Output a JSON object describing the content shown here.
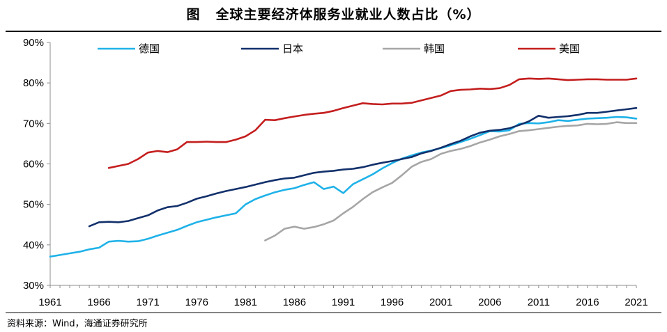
{
  "header": {
    "figure_label": "图",
    "title": "全球主要经济体服务业就业人数占比（%）"
  },
  "footer": {
    "source": "资料来源：Wind，海通证券研究所"
  },
  "chart_data": {
    "type": "line",
    "title": "全球主要经济体服务业就业人数占比（%）",
    "xlabel": "",
    "ylabel": "",
    "xlim": [
      1961,
      2021
    ],
    "ylim": [
      30,
      90
    ],
    "x_ticks": [
      1961,
      1966,
      1971,
      1976,
      1981,
      1986,
      1991,
      1996,
      2001,
      2006,
      2011,
      2016,
      2021
    ],
    "y_ticks": [
      30,
      40,
      50,
      60,
      70,
      80,
      90
    ],
    "y_tick_labels": [
      "30%",
      "40%",
      "50%",
      "60%",
      "70%",
      "80%",
      "90%"
    ],
    "legend_position": "top",
    "series": [
      {
        "name": "德国",
        "color": "#1fb2e8",
        "points": [
          [
            1961,
            37.1
          ],
          [
            1962,
            37.5
          ],
          [
            1963,
            37.9
          ],
          [
            1964,
            38.3
          ],
          [
            1965,
            38.9
          ],
          [
            1966,
            39.3
          ],
          [
            1967,
            40.8
          ],
          [
            1968,
            41.0
          ],
          [
            1969,
            40.8
          ],
          [
            1970,
            40.9
          ],
          [
            1971,
            41.5
          ],
          [
            1972,
            42.3
          ],
          [
            1973,
            43.0
          ],
          [
            1974,
            43.7
          ],
          [
            1975,
            44.7
          ],
          [
            1976,
            45.6
          ],
          [
            1977,
            46.2
          ],
          [
            1978,
            46.8
          ],
          [
            1979,
            47.3
          ],
          [
            1980,
            47.8
          ],
          [
            1981,
            50.0
          ],
          [
            1982,
            51.3
          ],
          [
            1983,
            52.2
          ],
          [
            1984,
            53.0
          ],
          [
            1985,
            53.6
          ],
          [
            1986,
            54.0
          ],
          [
            1987,
            54.8
          ],
          [
            1988,
            55.5
          ],
          [
            1989,
            53.8
          ],
          [
            1990,
            54.4
          ],
          [
            1991,
            52.8
          ],
          [
            1992,
            55.0
          ],
          [
            1993,
            56.2
          ],
          [
            1994,
            57.4
          ],
          [
            1995,
            58.9
          ],
          [
            1996,
            60.2
          ],
          [
            1997,
            61.3
          ],
          [
            1998,
            62.1
          ],
          [
            1999,
            62.8
          ],
          [
            2000,
            63.3
          ],
          [
            2001,
            63.9
          ],
          [
            2002,
            64.6
          ],
          [
            2003,
            65.4
          ],
          [
            2004,
            66.2
          ],
          [
            2005,
            67.1
          ],
          [
            2006,
            68.1
          ],
          [
            2007,
            68.0
          ],
          [
            2008,
            68.3
          ],
          [
            2009,
            69.9
          ],
          [
            2010,
            70.1
          ],
          [
            2011,
            70.0
          ],
          [
            2012,
            70.3
          ],
          [
            2013,
            70.8
          ],
          [
            2014,
            70.6
          ],
          [
            2015,
            70.9
          ],
          [
            2016,
            71.2
          ],
          [
            2017,
            71.3
          ],
          [
            2018,
            71.4
          ],
          [
            2019,
            71.6
          ],
          [
            2020,
            71.5
          ],
          [
            2021,
            71.2
          ]
        ]
      },
      {
        "name": "日本",
        "color": "#12306b",
        "points": [
          [
            1965,
            44.6
          ],
          [
            1966,
            45.6
          ],
          [
            1967,
            45.7
          ],
          [
            1968,
            45.6
          ],
          [
            1969,
            45.9
          ],
          [
            1970,
            46.6
          ],
          [
            1971,
            47.3
          ],
          [
            1972,
            48.5
          ],
          [
            1973,
            49.3
          ],
          [
            1974,
            49.6
          ],
          [
            1975,
            50.4
          ],
          [
            1976,
            51.4
          ],
          [
            1977,
            52.0
          ],
          [
            1978,
            52.7
          ],
          [
            1979,
            53.3
          ],
          [
            1980,
            53.8
          ],
          [
            1981,
            54.3
          ],
          [
            1982,
            54.9
          ],
          [
            1983,
            55.5
          ],
          [
            1984,
            56.0
          ],
          [
            1985,
            56.4
          ],
          [
            1986,
            56.6
          ],
          [
            1987,
            57.2
          ],
          [
            1988,
            57.8
          ],
          [
            1989,
            58.1
          ],
          [
            1990,
            58.3
          ],
          [
            1991,
            58.6
          ],
          [
            1992,
            58.8
          ],
          [
            1993,
            59.2
          ],
          [
            1994,
            59.8
          ],
          [
            1995,
            60.3
          ],
          [
            1996,
            60.7
          ],
          [
            1997,
            61.2
          ],
          [
            1998,
            61.7
          ],
          [
            1999,
            62.6
          ],
          [
            2000,
            63.2
          ],
          [
            2001,
            64.0
          ],
          [
            2002,
            64.9
          ],
          [
            2003,
            65.7
          ],
          [
            2004,
            66.8
          ],
          [
            2005,
            67.7
          ],
          [
            2006,
            68.2
          ],
          [
            2007,
            68.4
          ],
          [
            2008,
            68.8
          ],
          [
            2009,
            69.6
          ],
          [
            2010,
            70.5
          ],
          [
            2011,
            71.9
          ],
          [
            2012,
            71.4
          ],
          [
            2013,
            71.6
          ],
          [
            2014,
            71.8
          ],
          [
            2015,
            72.1
          ],
          [
            2016,
            72.6
          ],
          [
            2017,
            72.6
          ],
          [
            2018,
            72.9
          ],
          [
            2019,
            73.2
          ],
          [
            2020,
            73.5
          ],
          [
            2021,
            73.8
          ]
        ]
      },
      {
        "name": "韩国",
        "color": "#a6a6a6",
        "points": [
          [
            1983,
            41.1
          ],
          [
            1984,
            42.3
          ],
          [
            1985,
            44.0
          ],
          [
            1986,
            44.5
          ],
          [
            1987,
            44.0
          ],
          [
            1988,
            44.4
          ],
          [
            1989,
            45.1
          ],
          [
            1990,
            46.0
          ],
          [
            1991,
            47.8
          ],
          [
            1992,
            49.4
          ],
          [
            1993,
            51.3
          ],
          [
            1994,
            53.0
          ],
          [
            1995,
            54.2
          ],
          [
            1996,
            55.3
          ],
          [
            1997,
            57.2
          ],
          [
            1998,
            59.3
          ],
          [
            1999,
            60.5
          ],
          [
            2000,
            61.2
          ],
          [
            2001,
            62.5
          ],
          [
            2002,
            63.2
          ],
          [
            2003,
            63.7
          ],
          [
            2004,
            64.4
          ],
          [
            2005,
            65.3
          ],
          [
            2006,
            66.0
          ],
          [
            2007,
            66.8
          ],
          [
            2008,
            67.4
          ],
          [
            2009,
            68.1
          ],
          [
            2010,
            68.3
          ],
          [
            2011,
            68.6
          ],
          [
            2012,
            68.9
          ],
          [
            2013,
            69.2
          ],
          [
            2014,
            69.4
          ],
          [
            2015,
            69.5
          ],
          [
            2016,
            69.9
          ],
          [
            2017,
            69.8
          ],
          [
            2018,
            69.9
          ],
          [
            2019,
            70.3
          ],
          [
            2020,
            70.1
          ],
          [
            2021,
            70.1
          ]
        ]
      },
      {
        "name": "美国",
        "color": "#c41e1e",
        "points": [
          [
            1967,
            59.0
          ],
          [
            1968,
            59.5
          ],
          [
            1969,
            60.0
          ],
          [
            1970,
            61.2
          ],
          [
            1971,
            62.8
          ],
          [
            1972,
            63.2
          ],
          [
            1973,
            62.9
          ],
          [
            1974,
            63.6
          ],
          [
            1975,
            65.4
          ],
          [
            1976,
            65.4
          ],
          [
            1977,
            65.5
          ],
          [
            1978,
            65.4
          ],
          [
            1979,
            65.4
          ],
          [
            1980,
            66.0
          ],
          [
            1981,
            66.8
          ],
          [
            1982,
            68.3
          ],
          [
            1983,
            70.9
          ],
          [
            1984,
            70.8
          ],
          [
            1985,
            71.3
          ],
          [
            1986,
            71.7
          ],
          [
            1987,
            72.1
          ],
          [
            1988,
            72.4
          ],
          [
            1989,
            72.6
          ],
          [
            1990,
            73.1
          ],
          [
            1991,
            73.8
          ],
          [
            1992,
            74.4
          ],
          [
            1993,
            75.0
          ],
          [
            1994,
            74.8
          ],
          [
            1995,
            74.7
          ],
          [
            1996,
            74.9
          ],
          [
            1997,
            74.9
          ],
          [
            1998,
            75.1
          ],
          [
            1999,
            75.7
          ],
          [
            2000,
            76.3
          ],
          [
            2001,
            76.9
          ],
          [
            2002,
            78.0
          ],
          [
            2003,
            78.3
          ],
          [
            2004,
            78.4
          ],
          [
            2005,
            78.6
          ],
          [
            2006,
            78.5
          ],
          [
            2007,
            78.7
          ],
          [
            2008,
            79.5
          ],
          [
            2009,
            80.9
          ],
          [
            2010,
            81.1
          ],
          [
            2011,
            81.0
          ],
          [
            2012,
            81.1
          ],
          [
            2013,
            80.9
          ],
          [
            2014,
            80.7
          ],
          [
            2015,
            80.8
          ],
          [
            2016,
            80.9
          ],
          [
            2017,
            80.9
          ],
          [
            2018,
            80.8
          ],
          [
            2019,
            80.8
          ],
          [
            2020,
            80.8
          ],
          [
            2021,
            81.1
          ]
        ]
      }
    ]
  }
}
